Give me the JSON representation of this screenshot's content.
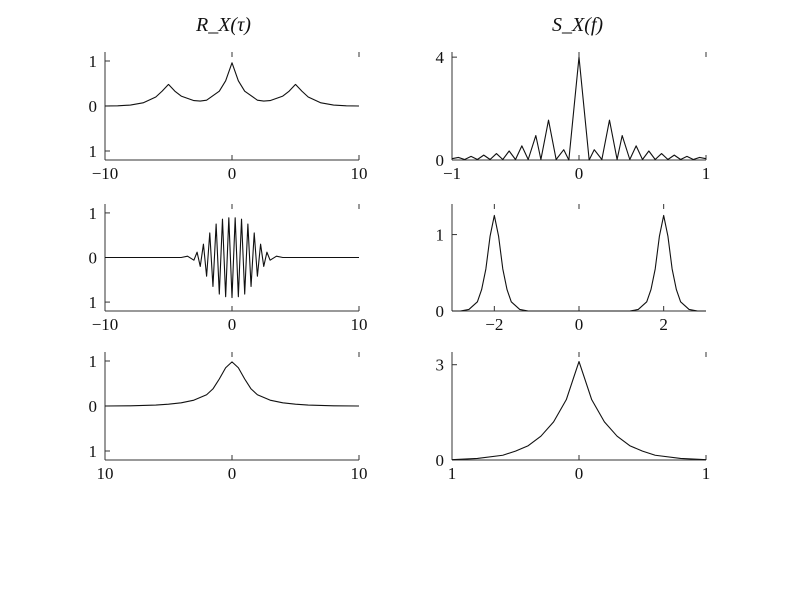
{
  "column_titles": {
    "left": "R_X(τ)",
    "right": "S_X(f)"
  },
  "colors": {
    "line": "#111111",
    "axis": "#333333"
  },
  "chart_data": [
    {
      "id": "r1",
      "type": "line",
      "title": "",
      "xlim": [
        -10,
        10
      ],
      "ylim": [
        -1.2,
        1.2
      ],
      "xticks": [
        {
          "v": -10,
          "label": "−10"
        },
        {
          "v": 0,
          "label": "0"
        },
        {
          "v": 10,
          "label": "10"
        }
      ],
      "yticks": [
        {
          "v": 1,
          "label": "1"
        },
        {
          "v": 0,
          "label": "0"
        },
        {
          "v": -1,
          "label": "1"
        }
      ],
      "series": [
        {
          "values": [
            [
              -10,
              0.0
            ],
            [
              -9,
              0.004
            ],
            [
              -8,
              0.02
            ],
            [
              -7,
              0.07
            ],
            [
              -6,
              0.2
            ],
            [
              -5.5,
              0.33
            ],
            [
              -5,
              0.48
            ],
            [
              -4.5,
              0.33
            ],
            [
              -4,
              0.22
            ],
            [
              -3,
              0.12
            ],
            [
              -2.5,
              0.11
            ],
            [
              -2,
              0.13
            ],
            [
              -1,
              0.33
            ],
            [
              -0.5,
              0.56
            ],
            [
              0,
              0.96
            ],
            [
              0.5,
              0.56
            ],
            [
              1,
              0.33
            ],
            [
              2,
              0.13
            ],
            [
              2.5,
              0.11
            ],
            [
              3,
              0.12
            ],
            [
              4,
              0.22
            ],
            [
              4.5,
              0.33
            ],
            [
              5,
              0.48
            ],
            [
              5.5,
              0.33
            ],
            [
              6,
              0.2
            ],
            [
              7,
              0.07
            ],
            [
              8,
              0.02
            ],
            [
              9,
              0.004
            ],
            [
              10,
              0.0
            ]
          ]
        }
      ]
    },
    {
      "id": "s1",
      "type": "line",
      "title": "",
      "xlim": [
        -1,
        1
      ],
      "ylim": [
        0,
        4.2
      ],
      "xticks": [
        {
          "v": -1,
          "label": "−1"
        },
        {
          "v": 0,
          "label": "0"
        },
        {
          "v": 1,
          "label": "1"
        }
      ],
      "yticks": [
        {
          "v": 4,
          "label": "4"
        },
        {
          "v": 0,
          "label": "0"
        }
      ],
      "series": [
        {
          "values": [
            [
              -1,
              0.05
            ],
            [
              -0.95,
              0.1
            ],
            [
              -0.9,
              0.02
            ],
            [
              -0.85,
              0.14
            ],
            [
              -0.8,
              0.02
            ],
            [
              -0.75,
              0.19
            ],
            [
              -0.7,
              0.02
            ],
            [
              -0.65,
              0.25
            ],
            [
              -0.6,
              0.02
            ],
            [
              -0.55,
              0.35
            ],
            [
              -0.5,
              0.02
            ],
            [
              -0.45,
              0.55
            ],
            [
              -0.4,
              0.02
            ],
            [
              -0.34,
              0.95
            ],
            [
              -0.3,
              0.02
            ],
            [
              -0.24,
              1.55
            ],
            [
              -0.18,
              0.02
            ],
            [
              -0.12,
              0.4
            ],
            [
              -0.08,
              0.0
            ],
            [
              -0.04,
              2.0
            ],
            [
              0,
              4.0
            ],
            [
              0.04,
              2.0
            ],
            [
              0.08,
              0.0
            ],
            [
              0.12,
              0.4
            ],
            [
              0.18,
              0.02
            ],
            [
              0.24,
              1.55
            ],
            [
              0.3,
              0.02
            ],
            [
              0.34,
              0.95
            ],
            [
              0.4,
              0.02
            ],
            [
              0.45,
              0.55
            ],
            [
              0.5,
              0.02
            ],
            [
              0.55,
              0.35
            ],
            [
              0.6,
              0.02
            ],
            [
              0.65,
              0.25
            ],
            [
              0.7,
              0.02
            ],
            [
              0.75,
              0.19
            ],
            [
              0.8,
              0.02
            ],
            [
              0.85,
              0.14
            ],
            [
              0.9,
              0.02
            ],
            [
              0.95,
              0.1
            ],
            [
              1,
              0.05
            ]
          ]
        }
      ]
    },
    {
      "id": "r2",
      "type": "line",
      "title": "",
      "xlim": [
        -10,
        10
      ],
      "ylim": [
        -1.2,
        1.2
      ],
      "xticks": [
        {
          "v": -10,
          "label": "−10"
        },
        {
          "v": 0,
          "label": "0"
        },
        {
          "v": 10,
          "label": "10"
        }
      ],
      "yticks": [
        {
          "v": 1,
          "label": "1"
        },
        {
          "v": 0,
          "label": "0"
        },
        {
          "v": -1,
          "label": "1"
        }
      ],
      "series": [
        {
          "values": [
            [
              -10,
              0
            ],
            [
              -4,
              0
            ],
            [
              -3.5,
              0.03
            ],
            [
              -3,
              -0.06
            ],
            [
              -2.75,
              0.12
            ],
            [
              -2.5,
              -0.2
            ],
            [
              -2.25,
              0.3
            ],
            [
              -2,
              -0.42
            ],
            [
              -1.75,
              0.55
            ],
            [
              -1.5,
              -0.65
            ],
            [
              -1.25,
              0.75
            ],
            [
              -1,
              -0.82
            ],
            [
              -0.75,
              0.86
            ],
            [
              -0.5,
              -0.88
            ],
            [
              -0.25,
              0.89
            ],
            [
              0,
              -0.9
            ],
            [
              0.25,
              0.89
            ],
            [
              0.5,
              -0.88
            ],
            [
              0.75,
              0.86
            ],
            [
              1,
              -0.82
            ],
            [
              1.25,
              0.75
            ],
            [
              1.5,
              -0.65
            ],
            [
              1.75,
              0.55
            ],
            [
              2,
              -0.42
            ],
            [
              2.25,
              0.3
            ],
            [
              2.5,
              -0.2
            ],
            [
              2.75,
              0.12
            ],
            [
              3,
              -0.06
            ],
            [
              3.5,
              0.03
            ],
            [
              4,
              0
            ],
            [
              10,
              0
            ]
          ]
        }
      ]
    },
    {
      "id": "s2",
      "type": "line",
      "title": "",
      "xlim": [
        -3,
        3
      ],
      "ylim": [
        0,
        1.4
      ],
      "xticks": [
        {
          "v": -2,
          "label": "−2"
        },
        {
          "v": 0,
          "label": "0"
        },
        {
          "v": 2,
          "label": "2"
        }
      ],
      "yticks": [
        {
          "v": 1,
          "label": "1"
        },
        {
          "v": 0,
          "label": "0"
        }
      ],
      "series": [
        {
          "values": [
            [
              -3,
              0
            ],
            [
              -2.8,
              0.0
            ],
            [
              -2.6,
              0.02
            ],
            [
              -2.4,
              0.12
            ],
            [
              -2.3,
              0.28
            ],
            [
              -2.2,
              0.55
            ],
            [
              -2.1,
              0.98
            ],
            [
              -2.0,
              1.25
            ],
            [
              -1.9,
              0.98
            ],
            [
              -1.8,
              0.55
            ],
            [
              -1.7,
              0.28
            ],
            [
              -1.6,
              0.12
            ],
            [
              -1.4,
              0.02
            ],
            [
              -1.2,
              0.0
            ],
            [
              1.2,
              0.0
            ],
            [
              1.4,
              0.02
            ],
            [
              1.6,
              0.12
            ],
            [
              1.7,
              0.28
            ],
            [
              1.8,
              0.55
            ],
            [
              1.9,
              0.98
            ],
            [
              2.0,
              1.25
            ],
            [
              2.1,
              0.98
            ],
            [
              2.2,
              0.55
            ],
            [
              2.3,
              0.28
            ],
            [
              2.4,
              0.12
            ],
            [
              2.6,
              0.02
            ],
            [
              2.8,
              0.0
            ],
            [
              3,
              0
            ]
          ]
        }
      ]
    },
    {
      "id": "r3",
      "type": "line",
      "title": "",
      "xlim": [
        -10,
        10
      ],
      "ylim": [
        -1.2,
        1.2
      ],
      "xticks": [
        {
          "v": -10,
          "label": "10"
        },
        {
          "v": 0,
          "label": "0"
        },
        {
          "v": 10,
          "label": "10"
        }
      ],
      "yticks": [
        {
          "v": 1,
          "label": "1"
        },
        {
          "v": 0,
          "label": "0"
        },
        {
          "v": -1,
          "label": "1"
        }
      ],
      "series": [
        {
          "values": [
            [
              -10,
              0.0
            ],
            [
              -8,
              0.005
            ],
            [
              -6,
              0.02
            ],
            [
              -5,
              0.04
            ],
            [
              -4,
              0.07
            ],
            [
              -3,
              0.13
            ],
            [
              -2,
              0.25
            ],
            [
              -1.5,
              0.38
            ],
            [
              -1,
              0.6
            ],
            [
              -0.5,
              0.85
            ],
            [
              0,
              0.98
            ],
            [
              0.5,
              0.85
            ],
            [
              1,
              0.6
            ],
            [
              1.5,
              0.38
            ],
            [
              2,
              0.25
            ],
            [
              3,
              0.13
            ],
            [
              4,
              0.07
            ],
            [
              5,
              0.04
            ],
            [
              6,
              0.02
            ],
            [
              8,
              0.005
            ],
            [
              10,
              0.0
            ]
          ]
        }
      ]
    },
    {
      "id": "s3",
      "type": "line",
      "title": "",
      "xlim": [
        -1,
        1
      ],
      "ylim": [
        0,
        3.4
      ],
      "xticks": [
        {
          "v": -1,
          "label": "1"
        },
        {
          "v": 0,
          "label": "0"
        },
        {
          "v": 1,
          "label": "1"
        }
      ],
      "yticks": [
        {
          "v": 3,
          "label": "3"
        },
        {
          "v": 0,
          "label": "0"
        }
      ],
      "series": [
        {
          "values": [
            [
              -1,
              0.01
            ],
            [
              -0.8,
              0.05
            ],
            [
              -0.6,
              0.15
            ],
            [
              -0.5,
              0.28
            ],
            [
              -0.4,
              0.45
            ],
            [
              -0.3,
              0.75
            ],
            [
              -0.2,
              1.2
            ],
            [
              -0.1,
              1.9
            ],
            [
              -0.05,
              2.5
            ],
            [
              0,
              3.1
            ],
            [
              0.05,
              2.5
            ],
            [
              0.1,
              1.9
            ],
            [
              0.2,
              1.2
            ],
            [
              0.3,
              0.75
            ],
            [
              0.4,
              0.45
            ],
            [
              0.5,
              0.28
            ],
            [
              0.6,
              0.15
            ],
            [
              0.8,
              0.05
            ],
            [
              1,
              0.01
            ]
          ]
        }
      ]
    }
  ]
}
